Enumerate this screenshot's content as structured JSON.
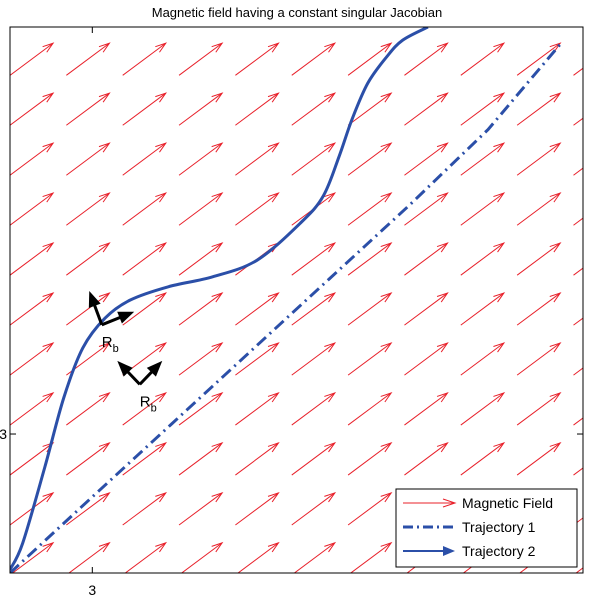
{
  "chart_data": {
    "type": "quiver",
    "title": "Magnetic field having a constant singular Jacobian",
    "xlabel": "",
    "ylabel": "",
    "xlim": [
      2.74,
      4.55
    ],
    "ylim": [
      2.58,
      4.23
    ],
    "x_ticks": [
      {
        "value": 3,
        "label": "3"
      }
    ],
    "y_ticks": [
      {
        "value": 3,
        "label": "3"
      }
    ],
    "grid": false,
    "legend_position": "bottom-right",
    "colors": {
      "magnetic_field": "#e8202a",
      "trajectory_1": "#2b4fa8",
      "trajectory_2": "#2b4fa8",
      "frame": "#000000",
      "axes": "#000000"
    },
    "field": {
      "name": "Magnetic Field",
      "color": "#e8202a",
      "x_positions": [
        2.74,
        2.918,
        3.096,
        3.274,
        3.452,
        3.63,
        3.808,
        3.986,
        4.164,
        4.342,
        4.52
      ],
      "y_positions": [
        2.574,
        2.725,
        2.876,
        3.027,
        3.178,
        3.329,
        3.48,
        3.631,
        3.782,
        3.933,
        4.084
      ],
      "vector": [
        0.136,
        0.097
      ]
    },
    "series": [
      {
        "name": "Trajectory 1",
        "style": "dash-dot",
        "color": "#2b4fa8",
        "x": [
          2.74,
          3.0,
          3.25,
          3.5,
          3.75,
          4.0,
          4.25,
          4.48
        ],
        "y": [
          2.58,
          2.81,
          3.03,
          3.25,
          3.47,
          3.69,
          3.92,
          4.18
        ]
      },
      {
        "name": "Trajectory 2",
        "style": "solid",
        "color": "#2b4fa8",
        "x": [
          2.74,
          2.78,
          2.85,
          2.91,
          2.97,
          3.04,
          3.12,
          3.24,
          3.38,
          3.52,
          3.66,
          3.73,
          3.78,
          3.82,
          3.87,
          3.93,
          3.98,
          4.06
        ],
        "y": [
          2.59,
          2.67,
          2.9,
          3.11,
          3.26,
          3.35,
          3.405,
          3.445,
          3.475,
          3.525,
          3.64,
          3.72,
          3.84,
          3.95,
          4.06,
          4.14,
          4.19,
          4.23
        ]
      }
    ],
    "frames": [
      {
        "label": "R",
        "subscript": "b",
        "origin": [
          3.15,
          3.15
        ],
        "axes_directions": [
          [
            0.71,
            0.71
          ],
          [
            -0.71,
            0.71
          ]
        ],
        "length": 0.1
      },
      {
        "label": "R",
        "subscript": "b",
        "origin": [
          3.03,
          3.33
        ],
        "axes_directions": [
          [
            0.93,
            0.36
          ],
          [
            -0.36,
            0.93
          ]
        ],
        "length": 0.11
      }
    ],
    "legend": [
      "Magnetic Field",
      "Trajectory 1",
      "Trajectory 2"
    ]
  }
}
